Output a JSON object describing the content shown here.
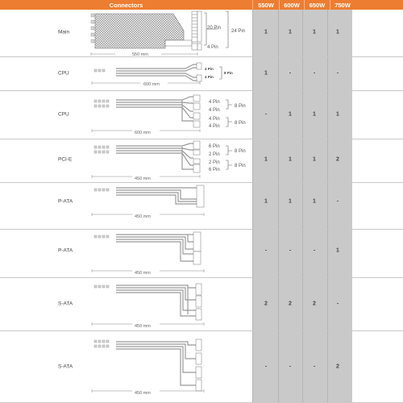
{
  "header": {
    "connectors": "Connectors",
    "models": [
      "550W",
      "600W",
      "650W",
      "750W"
    ]
  },
  "rows": [
    {
      "label": "Main",
      "values": [
        "1",
        "1",
        "1",
        "1"
      ],
      "length": "550 mm",
      "pins": [
        "20 Pin",
        "4 Pin"
      ],
      "combined": "24 Pin"
    },
    {
      "label": "CPU",
      "values": [
        "1",
        "-",
        "-",
        "-"
      ],
      "length": "600 mm",
      "pins": [
        "4 Pin",
        "4 Pin"
      ],
      "combined": "8 Pin"
    },
    {
      "label": "CPU",
      "values": [
        "-",
        "1",
        "1",
        "1"
      ],
      "length": "600 mm",
      "pins": [
        "4 Pin",
        "4 Pin",
        "4 Pin",
        "4 Pin"
      ],
      "combined": [
        "8 Pin",
        "8 Pin"
      ]
    },
    {
      "label": "PCI-E",
      "values": [
        "1",
        "1",
        "1",
        "2"
      ],
      "length": "450 mm",
      "pins": [
        "6 Pin",
        "2 Pin",
        "2 Pin",
        "6 Pin"
      ],
      "combined": [
        "8 Pin",
        "8 Pin"
      ]
    },
    {
      "label": "P-ATA",
      "values": [
        "1",
        "1",
        "1",
        "-"
      ],
      "length": "450 mm"
    },
    {
      "label": "P-ATA",
      "values": [
        "-",
        "-",
        "-",
        "1"
      ],
      "length": "450 mm"
    },
    {
      "label": "S-ATA",
      "values": [
        "2",
        "2",
        "2",
        "-"
      ],
      "length": "450 mm"
    },
    {
      "label": "S-ATA",
      "values": [
        "-",
        "-",
        "-",
        "2"
      ],
      "length": "450 mm"
    }
  ],
  "colors": {
    "header": "#ed7d31",
    "value_column": "#c9c9c9"
  }
}
